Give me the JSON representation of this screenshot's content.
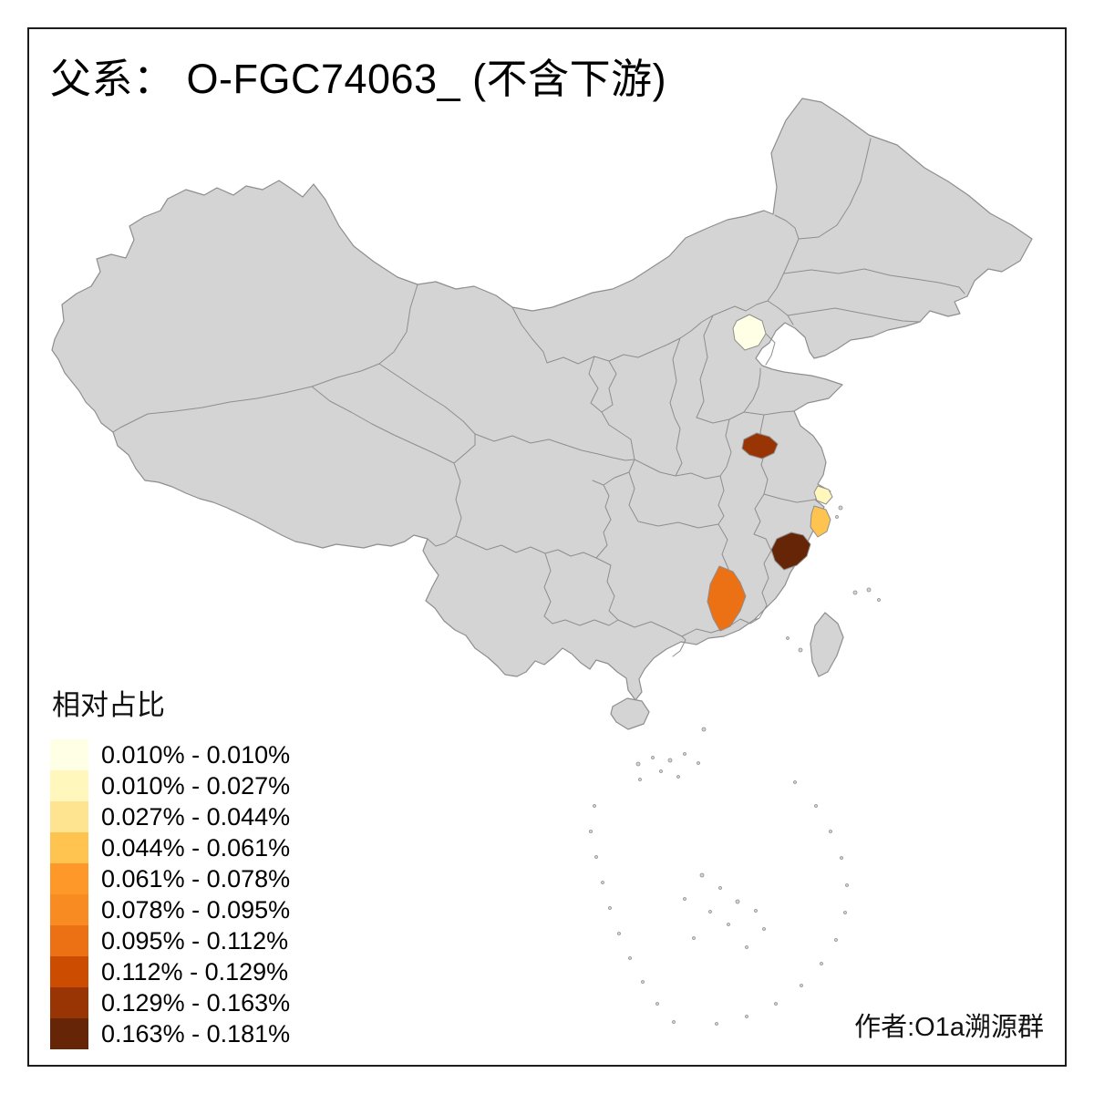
{
  "title": "父系： O-FGC74063_ (不含下游)",
  "author": "作者:O1a溯源群",
  "legend": {
    "title": "相对占比",
    "bins": [
      {
        "color": "#FFFFE5",
        "label": "0.010% - 0.010%"
      },
      {
        "color": "#FFF7BC",
        "label": "0.010% - 0.027%"
      },
      {
        "color": "#FEE391",
        "label": "0.027% - 0.044%"
      },
      {
        "color": "#FEC44F",
        "label": "0.044% - 0.061%"
      },
      {
        "color": "#FE9929",
        "label": "0.061% - 0.078%"
      },
      {
        "color": "#F88B22",
        "label": "0.078% - 0.095%"
      },
      {
        "color": "#EC7014",
        "label": "0.095% - 0.112%"
      },
      {
        "color": "#CC4C02",
        "label": "0.112% - 0.129%"
      },
      {
        "color": "#993404",
        "label": "0.129% - 0.163%"
      },
      {
        "color": "#662506",
        "label": "0.163% - 0.181%"
      }
    ]
  },
  "map": {
    "base_fill": "#D4D4D4",
    "border_color": "#8E8E8E",
    "background": "#FFFFFF",
    "highlighted_regions": [
      {
        "id": "beijing-area",
        "fill": "#FFFFE5",
        "legend_bin": 1,
        "bin_label": "0.010% - 0.010%"
      },
      {
        "id": "jiangsu-area",
        "fill": "#993404",
        "legend_bin": 9,
        "bin_label": "0.129% - 0.163%"
      },
      {
        "id": "shanghai-area",
        "fill": "#FFF7BC",
        "legend_bin": 2,
        "bin_label": "0.010% - 0.027%"
      },
      {
        "id": "north-zhejiang-area",
        "fill": "#FEC44F",
        "legend_bin": 4,
        "bin_label": "0.044% - 0.061%"
      },
      {
        "id": "south-zhejiang-area",
        "fill": "#662506",
        "legend_bin": 10,
        "bin_label": "0.163% - 0.181%"
      },
      {
        "id": "hunan-jiangxi-area",
        "fill": "#EC7014",
        "legend_bin": 7,
        "bin_label": "0.095% - 0.112%"
      }
    ]
  }
}
